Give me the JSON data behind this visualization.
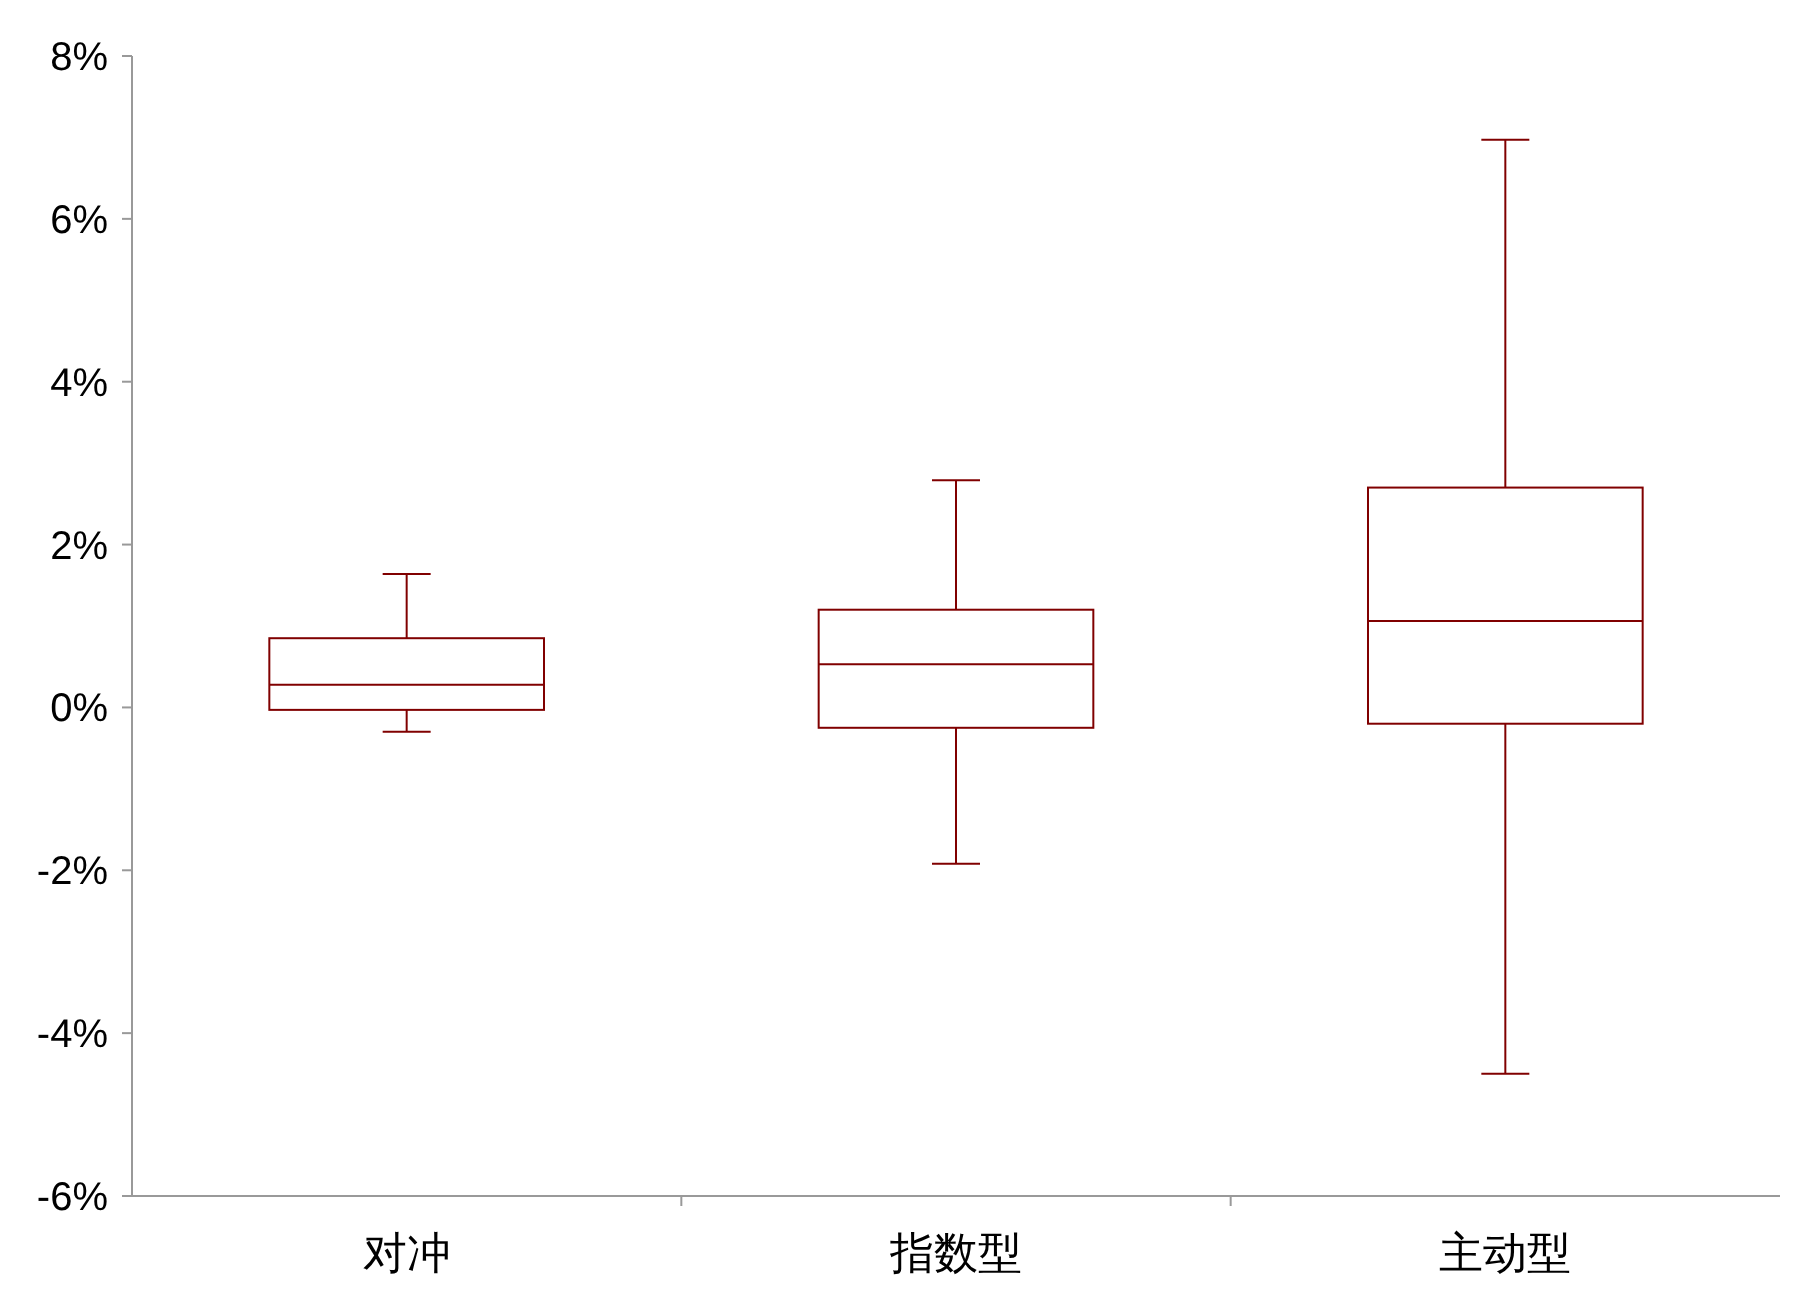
{
  "chart_data": {
    "type": "box",
    "categories": [
      "对冲",
      "指数型",
      "主动型"
    ],
    "boxes": [
      {
        "low": -0.3,
        "q1": -0.03,
        "median": 0.28,
        "q3": 0.85,
        "high": 1.64
      },
      {
        "low": -1.92,
        "q1": -0.25,
        "median": 0.53,
        "q3": 1.2,
        "high": 2.79
      },
      {
        "low": -4.5,
        "q1": -0.2,
        "median": 1.06,
        "q3": 2.7,
        "high": 6.97
      }
    ],
    "color": "#800000",
    "ylim": [
      -6,
      8
    ],
    "yticks": [
      {
        "value": -6,
        "label": "-6%"
      },
      {
        "value": -4,
        "label": "-4%"
      },
      {
        "value": -2,
        "label": "-2%"
      },
      {
        "value": 0,
        "label": "0%"
      },
      {
        "value": 2,
        "label": "2%"
      },
      {
        "value": 4,
        "label": "4%"
      },
      {
        "value": 6,
        "label": "6%"
      },
      {
        "value": 8,
        "label": "8%"
      }
    ],
    "grid": false
  }
}
